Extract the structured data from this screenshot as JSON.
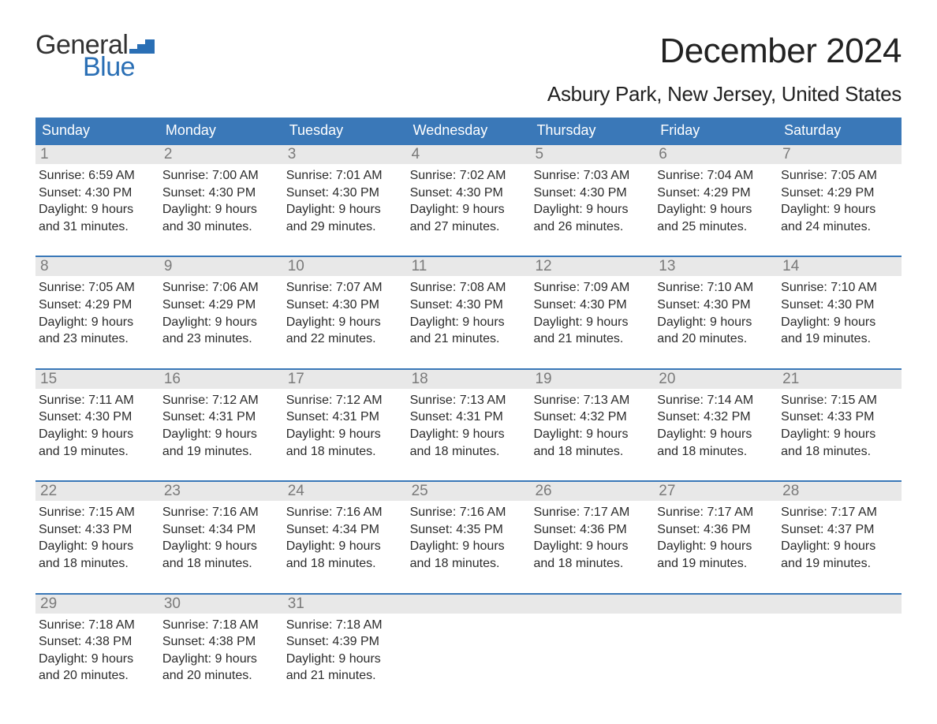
{
  "brand": {
    "general": "General",
    "blue": "Blue",
    "flag_color": "#2a6fb5"
  },
  "title": "December 2024",
  "location": "Asbury Park, New Jersey, United States",
  "colors": {
    "header_bg": "#3a78b8",
    "header_text": "#ffffff",
    "week_border": "#3a78b8",
    "daynum_bg": "#e8e8e8",
    "daynum_text": "#7a7a7a",
    "body_text": "#2b2b2b",
    "background": "#ffffff"
  },
  "typography": {
    "title_fontsize": 44,
    "location_fontsize": 26,
    "header_fontsize": 18,
    "daynum_fontsize": 19,
    "body_fontsize": 16
  },
  "day_names": [
    "Sunday",
    "Monday",
    "Tuesday",
    "Wednesday",
    "Thursday",
    "Friday",
    "Saturday"
  ],
  "labels": {
    "sunrise": "Sunrise:",
    "sunset": "Sunset:",
    "daylight_prefix": "Daylight:"
  },
  "days": [
    {
      "n": 1,
      "sunrise": "6:59 AM",
      "sunset": "4:30 PM",
      "daylight": "9 hours and 31 minutes."
    },
    {
      "n": 2,
      "sunrise": "7:00 AM",
      "sunset": "4:30 PM",
      "daylight": "9 hours and 30 minutes."
    },
    {
      "n": 3,
      "sunrise": "7:01 AM",
      "sunset": "4:30 PM",
      "daylight": "9 hours and 29 minutes."
    },
    {
      "n": 4,
      "sunrise": "7:02 AM",
      "sunset": "4:30 PM",
      "daylight": "9 hours and 27 minutes."
    },
    {
      "n": 5,
      "sunrise": "7:03 AM",
      "sunset": "4:30 PM",
      "daylight": "9 hours and 26 minutes."
    },
    {
      "n": 6,
      "sunrise": "7:04 AM",
      "sunset": "4:29 PM",
      "daylight": "9 hours and 25 minutes."
    },
    {
      "n": 7,
      "sunrise": "7:05 AM",
      "sunset": "4:29 PM",
      "daylight": "9 hours and 24 minutes."
    },
    {
      "n": 8,
      "sunrise": "7:05 AM",
      "sunset": "4:29 PM",
      "daylight": "9 hours and 23 minutes."
    },
    {
      "n": 9,
      "sunrise": "7:06 AM",
      "sunset": "4:29 PM",
      "daylight": "9 hours and 23 minutes."
    },
    {
      "n": 10,
      "sunrise": "7:07 AM",
      "sunset": "4:30 PM",
      "daylight": "9 hours and 22 minutes."
    },
    {
      "n": 11,
      "sunrise": "7:08 AM",
      "sunset": "4:30 PM",
      "daylight": "9 hours and 21 minutes."
    },
    {
      "n": 12,
      "sunrise": "7:09 AM",
      "sunset": "4:30 PM",
      "daylight": "9 hours and 21 minutes."
    },
    {
      "n": 13,
      "sunrise": "7:10 AM",
      "sunset": "4:30 PM",
      "daylight": "9 hours and 20 minutes."
    },
    {
      "n": 14,
      "sunrise": "7:10 AM",
      "sunset": "4:30 PM",
      "daylight": "9 hours and 19 minutes."
    },
    {
      "n": 15,
      "sunrise": "7:11 AM",
      "sunset": "4:30 PM",
      "daylight": "9 hours and 19 minutes."
    },
    {
      "n": 16,
      "sunrise": "7:12 AM",
      "sunset": "4:31 PM",
      "daylight": "9 hours and 19 minutes."
    },
    {
      "n": 17,
      "sunrise": "7:12 AM",
      "sunset": "4:31 PM",
      "daylight": "9 hours and 18 minutes."
    },
    {
      "n": 18,
      "sunrise": "7:13 AM",
      "sunset": "4:31 PM",
      "daylight": "9 hours and 18 minutes."
    },
    {
      "n": 19,
      "sunrise": "7:13 AM",
      "sunset": "4:32 PM",
      "daylight": "9 hours and 18 minutes."
    },
    {
      "n": 20,
      "sunrise": "7:14 AM",
      "sunset": "4:32 PM",
      "daylight": "9 hours and 18 minutes."
    },
    {
      "n": 21,
      "sunrise": "7:15 AM",
      "sunset": "4:33 PM",
      "daylight": "9 hours and 18 minutes."
    },
    {
      "n": 22,
      "sunrise": "7:15 AM",
      "sunset": "4:33 PM",
      "daylight": "9 hours and 18 minutes."
    },
    {
      "n": 23,
      "sunrise": "7:16 AM",
      "sunset": "4:34 PM",
      "daylight": "9 hours and 18 minutes."
    },
    {
      "n": 24,
      "sunrise": "7:16 AM",
      "sunset": "4:34 PM",
      "daylight": "9 hours and 18 minutes."
    },
    {
      "n": 25,
      "sunrise": "7:16 AM",
      "sunset": "4:35 PM",
      "daylight": "9 hours and 18 minutes."
    },
    {
      "n": 26,
      "sunrise": "7:17 AM",
      "sunset": "4:36 PM",
      "daylight": "9 hours and 18 minutes."
    },
    {
      "n": 27,
      "sunrise": "7:17 AM",
      "sunset": "4:36 PM",
      "daylight": "9 hours and 19 minutes."
    },
    {
      "n": 28,
      "sunrise": "7:17 AM",
      "sunset": "4:37 PM",
      "daylight": "9 hours and 19 minutes."
    },
    {
      "n": 29,
      "sunrise": "7:18 AM",
      "sunset": "4:38 PM",
      "daylight": "9 hours and 20 minutes."
    },
    {
      "n": 30,
      "sunrise": "7:18 AM",
      "sunset": "4:38 PM",
      "daylight": "9 hours and 20 minutes."
    },
    {
      "n": 31,
      "sunrise": "7:18 AM",
      "sunset": "4:39 PM",
      "daylight": "9 hours and 21 minutes."
    }
  ],
  "grid": {
    "first_weekday_index": 0,
    "total_cells": 35,
    "columns": 7
  }
}
